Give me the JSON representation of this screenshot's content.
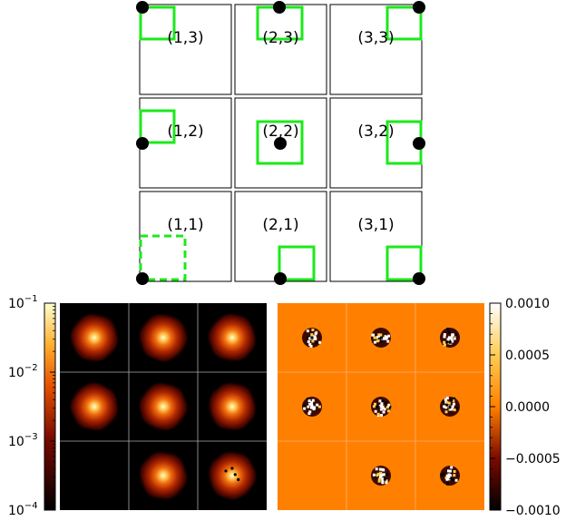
{
  "panel_labels": [
    {
      "id": "1-3",
      "text": "(1,3)"
    },
    {
      "id": "2-3",
      "text": "(2,3)"
    },
    {
      "id": "3-3",
      "text": "(3,3)"
    },
    {
      "id": "1-2",
      "text": "(1,2)"
    },
    {
      "id": "2-2",
      "text": "(2,2)"
    },
    {
      "id": "3-2",
      "text": "(3,2)"
    },
    {
      "id": "1-1",
      "text": "(1,1)"
    },
    {
      "id": "2-1",
      "text": "(2,1)"
    },
    {
      "id": "3-1",
      "text": "(3,1)"
    }
  ],
  "left_colorbar": {
    "ticks": [
      {
        "base": "10",
        "exp": "−1"
      },
      {
        "base": "10",
        "exp": "−2"
      },
      {
        "base": "10",
        "exp": "−3"
      },
      {
        "base": "10",
        "exp": "−4"
      }
    ]
  },
  "right_colorbar": {
    "ticks": [
      "0.0010",
      "0.0005",
      "0.0000",
      "−0.0005",
      "−0.0010"
    ]
  },
  "colors": {
    "box_outline": "#1be91b",
    "dot": "#000000",
    "residual_background": "#ff8000",
    "image_background": "#000000"
  }
}
